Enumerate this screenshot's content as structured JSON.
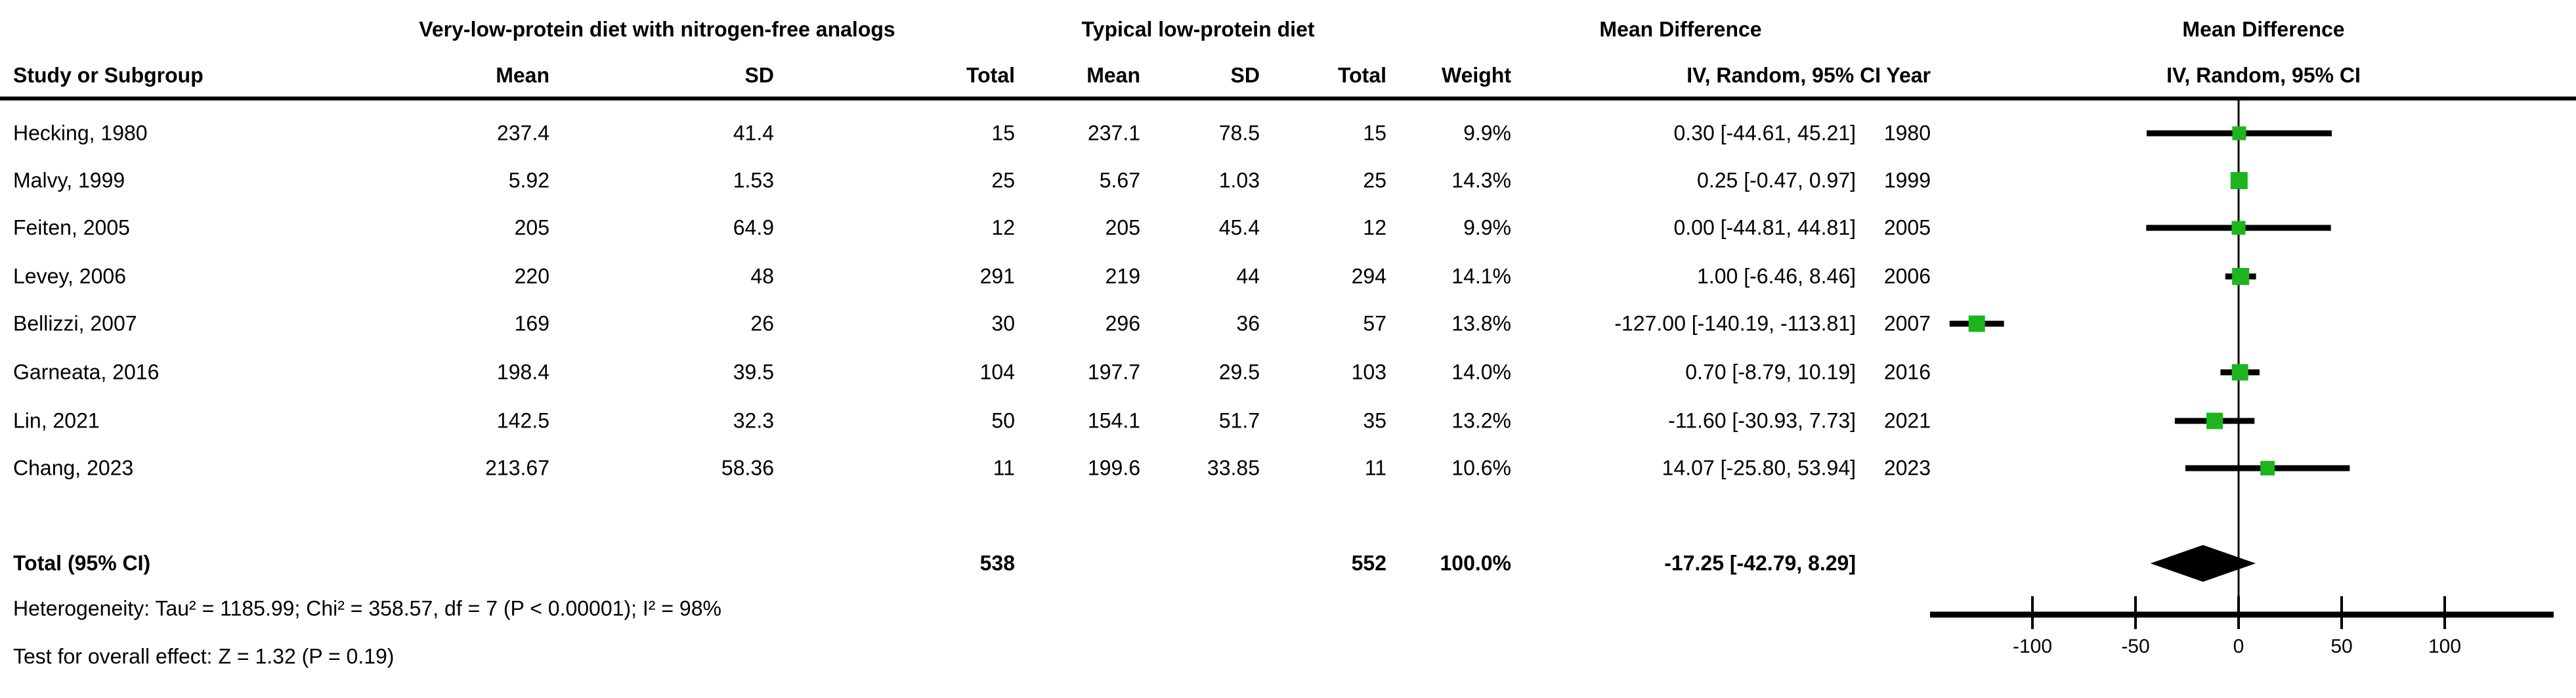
{
  "chart_data": {
    "type": "forest",
    "title_left": "Mean Difference",
    "title_right": "Mean Difference",
    "model_label": "IV, Random, 95% CI",
    "model_year_label": "IV, Random, 95% CI Year",
    "group1_label": "Very-low-protein diet with nitrogen-free analogs",
    "group2_label": "Typical low-protein diet",
    "columns": {
      "study": "Study or Subgroup",
      "mean": "Mean",
      "sd": "SD",
      "total": "Total",
      "weight": "Weight",
      "iv_year": "IV, Random, 95% CI Year",
      "iv": "IV, Random, 95% CI",
      "year": "Year"
    },
    "studies": [
      {
        "study": "Hecking, 1980",
        "mean1": "237.4",
        "sd1": "41.4",
        "total1": "15",
        "mean2": "237.1",
        "sd2": "78.5",
        "total2": "15",
        "weight": "9.9%",
        "ci_text": "0.30 [-44.61, 45.21]",
        "year": "1980",
        "est": 0.3,
        "lo": -44.61,
        "hi": 45.21,
        "weight_val": 9.9
      },
      {
        "study": "Malvy, 1999",
        "mean1": "5.92",
        "sd1": "1.53",
        "total1": "25",
        "mean2": "5.67",
        "sd2": "1.03",
        "total2": "25",
        "weight": "14.3%",
        "ci_text": "0.25 [-0.47, 0.97]",
        "year": "1999",
        "est": 0.25,
        "lo": -0.47,
        "hi": 0.97,
        "weight_val": 14.3
      },
      {
        "study": "Feiten, 2005",
        "mean1": "205",
        "sd1": "64.9",
        "total1": "12",
        "mean2": "205",
        "sd2": "45.4",
        "total2": "12",
        "weight": "9.9%",
        "ci_text": "0.00 [-44.81, 44.81]",
        "year": "2005",
        "est": 0.0,
        "lo": -44.81,
        "hi": 44.81,
        "weight_val": 9.9
      },
      {
        "study": "Levey, 2006",
        "mean1": "220",
        "sd1": "48",
        "total1": "291",
        "mean2": "219",
        "sd2": "44",
        "total2": "294",
        "weight": "14.1%",
        "ci_text": "1.00 [-6.46, 8.46]",
        "year": "2006",
        "est": 1.0,
        "lo": -6.46,
        "hi": 8.46,
        "weight_val": 14.1
      },
      {
        "study": "Bellizzi, 2007",
        "mean1": "169",
        "sd1": "26",
        "total1": "30",
        "mean2": "296",
        "sd2": "36",
        "total2": "57",
        "weight": "13.8%",
        "ci_text": "-127.00 [-140.19, -113.81]",
        "year": "2007",
        "est": -127.0,
        "lo": -140.19,
        "hi": -113.81,
        "weight_val": 13.8
      },
      {
        "study": "Garneata, 2016",
        "mean1": "198.4",
        "sd1": "39.5",
        "total1": "104",
        "mean2": "197.7",
        "sd2": "29.5",
        "total2": "103",
        "weight": "14.0%",
        "ci_text": "0.70 [-8.79, 10.19]",
        "year": "2016",
        "est": 0.7,
        "lo": -8.79,
        "hi": 10.19,
        "weight_val": 14.0
      },
      {
        "study": "Lin, 2021",
        "mean1": "142.5",
        "sd1": "32.3",
        "total1": "50",
        "mean2": "154.1",
        "sd2": "51.7",
        "total2": "35",
        "weight": "13.2%",
        "ci_text": "-11.60 [-30.93, 7.73]",
        "year": "2021",
        "est": -11.6,
        "lo": -30.93,
        "hi": 7.73,
        "weight_val": 13.2
      },
      {
        "study": "Chang, 2023",
        "mean1": "213.67",
        "sd1": "58.36",
        "total1": "11",
        "mean2": "199.6",
        "sd2": "33.85",
        "total2": "11",
        "weight": "10.6%",
        "ci_text": "14.07 [-25.80, 53.94]",
        "year": "2023",
        "est": 14.07,
        "lo": -25.8,
        "hi": 53.94,
        "weight_val": 10.6
      }
    ],
    "total": {
      "label": "Total (95% CI)",
      "total1": "538",
      "total2": "552",
      "weight": "100.0%",
      "ci_text": "-17.25 [-42.79, 8.29]",
      "est": -17.25,
      "lo": -42.79,
      "hi": 8.29
    },
    "heterogeneity": "Heterogeneity: Tau² = 1185.99; Chi² = 358.57, df = 7 (P < 0.00001); I² = 98%",
    "overall_effect": "Test for overall effect: Z = 1.32 (P = 0.19)",
    "axis": {
      "ticks": [
        -100,
        -50,
        0,
        50,
        100
      ],
      "tick_labels": [
        "-100",
        "-50",
        "0",
        "50",
        "100"
      ]
    },
    "colors": {
      "marker": "#1eb41e",
      "line": "#000000",
      "diamond": "#000000"
    }
  }
}
